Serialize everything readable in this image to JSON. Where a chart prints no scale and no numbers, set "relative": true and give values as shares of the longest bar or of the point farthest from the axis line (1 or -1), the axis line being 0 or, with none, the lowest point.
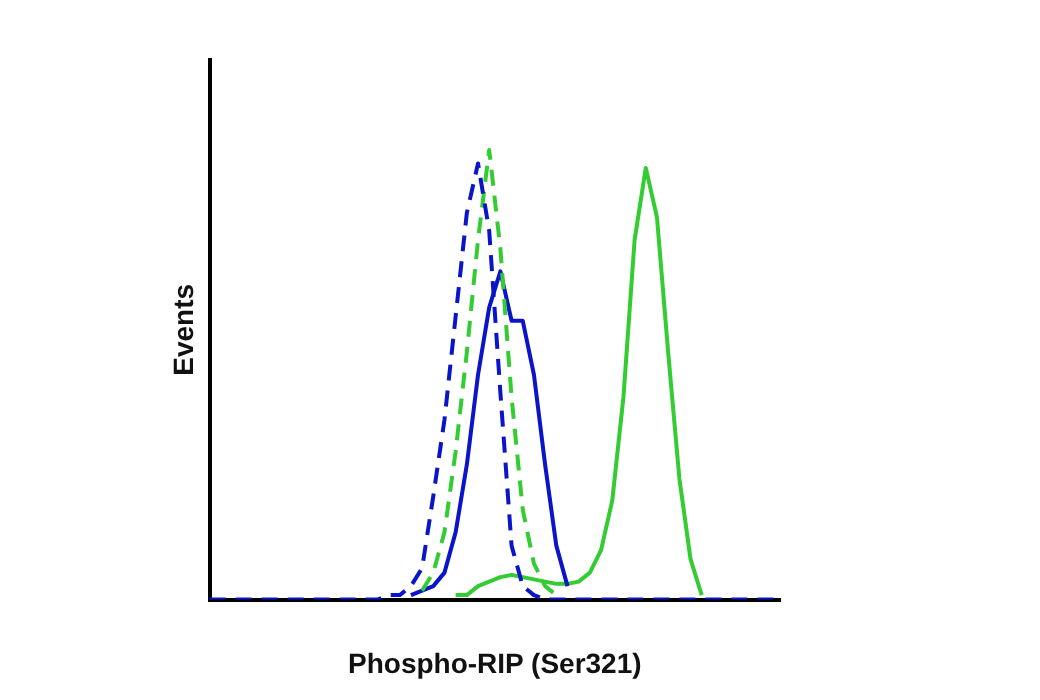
{
  "chart_data": {
    "type": "line",
    "relative": true,
    "xlabel": "Phospho-RIP (Ser321)",
    "ylabel": "Events",
    "grid": false,
    "legend": false,
    "marker": "none",
    "categories": [
      null,
      null,
      null,
      null,
      null,
      null,
      null,
      null,
      null,
      null,
      null,
      null,
      null,
      null,
      null,
      null,
      null,
      null,
      null,
      null,
      null,
      null,
      null,
      null,
      null,
      null,
      null,
      null,
      null,
      null,
      null,
      null,
      null,
      null,
      null,
      null,
      null,
      null,
      null,
      null,
      null,
      null,
      null,
      null,
      null,
      null,
      null,
      null,
      null,
      null,
      null,
      null
    ],
    "series": [
      {
        "color": "#0a14c8",
        "line_style": "dashed",
        "values": [
          0,
          0,
          0,
          0,
          0,
          0,
          0,
          0,
          0,
          0,
          0,
          0,
          0,
          0,
          0,
          0,
          0.01,
          0.01,
          0.03,
          0.07,
          0.23,
          0.4,
          0.63,
          0.86,
          0.97,
          0.82,
          0.46,
          0.12,
          0.03,
          0.01,
          0,
          0,
          0,
          0,
          0,
          0,
          0,
          0,
          0,
          0,
          0,
          0,
          0,
          0,
          0,
          0,
          0,
          0,
          0,
          0,
          0,
          0
        ]
      },
      {
        "color": "#33cc33",
        "line_style": "dashed",
        "values": [
          null,
          null,
          null,
          null,
          null,
          null,
          null,
          null,
          null,
          null,
          null,
          null,
          null,
          null,
          null,
          null,
          null,
          null,
          null,
          0.02,
          0.06,
          0.15,
          0.33,
          0.55,
          0.8,
          1,
          0.78,
          0.45,
          0.2,
          0.08,
          0.03,
          0.01,
          null,
          null,
          null,
          null,
          null,
          null,
          null,
          null,
          null,
          null,
          null,
          null,
          null,
          null,
          null,
          null,
          null,
          null,
          null,
          null
        ]
      },
      {
        "color": "#0a14c8",
        "line_style": "solid",
        "values": [
          null,
          null,
          null,
          null,
          null,
          null,
          null,
          null,
          null,
          null,
          null,
          null,
          null,
          null,
          null,
          null,
          null,
          null,
          0.01,
          0.02,
          0.03,
          0.06,
          0.15,
          0.3,
          0.5,
          0.65,
          0.73,
          0.62,
          0.62,
          0.5,
          0.3,
          0.12,
          0.03,
          null,
          null,
          null,
          null,
          null,
          null,
          null,
          null,
          null,
          null,
          null,
          null,
          null,
          null,
          null,
          null,
          null,
          null,
          null
        ]
      },
      {
        "color": "#33cc33",
        "line_style": "solid",
        "values": [
          null,
          null,
          null,
          null,
          null,
          null,
          null,
          null,
          null,
          null,
          null,
          null,
          null,
          null,
          null,
          null,
          null,
          null,
          null,
          null,
          null,
          null,
          0.01,
          0.01,
          0.03,
          0.04,
          0.05,
          0.055,
          0.05,
          0.045,
          0.04,
          0.035,
          0.035,
          0.04,
          0.06,
          0.11,
          0.22,
          0.45,
          0.8,
          0.96,
          0.85,
          0.55,
          0.27,
          0.09,
          0.01,
          null,
          null,
          null,
          null,
          null,
          null,
          null
        ]
      }
    ]
  }
}
